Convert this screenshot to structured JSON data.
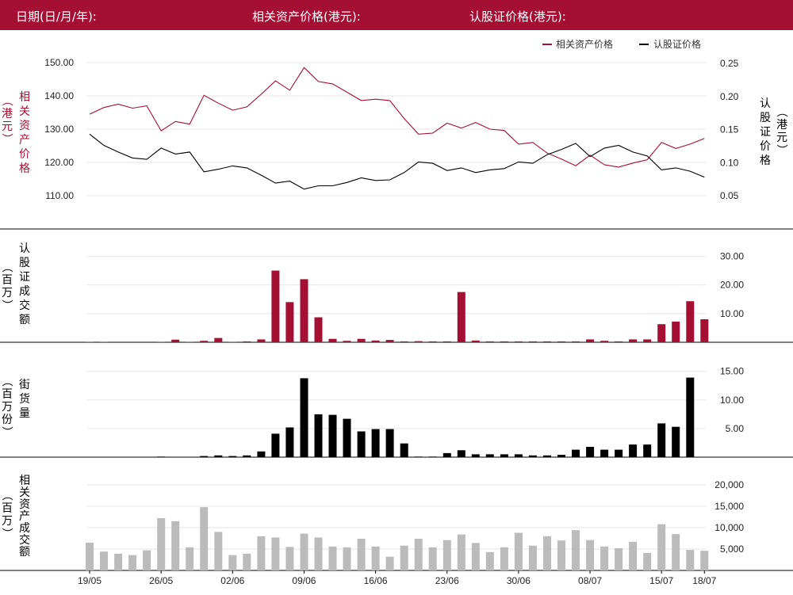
{
  "header": {
    "date_label": "日期(日/月/年):",
    "underlying_label": "相关资产价格(港元):",
    "warrant_label": "认股证价格(港元):"
  },
  "colors": {
    "header_bg": "#a50f33",
    "underlying": "#a50f33",
    "warrant": "#000000",
    "turnover_bar": "#a50f33",
    "outstanding_bar": "#000000",
    "underlying_turnover_bar": "#bbbbbb"
  },
  "chart_data": [
    {
      "type": "line",
      "title": "",
      "legend": [
        "相关资产价格",
        "认股证价格"
      ],
      "legend_position": "top-right",
      "ylabel_left": "相关资产价格（港元）",
      "ylabel_right": "认股证价格（港元）",
      "ylim_left": [
        104,
        154
      ],
      "ylim_right": [
        0.025,
        0.27
      ],
      "yticks_left": [
        "110.00",
        "120.00",
        "130.00",
        "140.00",
        "150.00"
      ],
      "yticks_right": [
        "0.05",
        "0.10",
        "0.15",
        "0.20",
        "0.25"
      ],
      "x_tick_labels": [
        "19/05",
        "26/05",
        "02/06",
        "09/06",
        "16/06",
        "23/06",
        "30/06",
        "08/07",
        "15/07",
        "18/07"
      ],
      "series": [
        {
          "name": "相关资产价格",
          "axis": "left",
          "values": [
            134.5,
            136.5,
            137.5,
            136.3,
            137,
            129.5,
            132.3,
            131.5,
            140.2,
            137.8,
            135.7,
            136.7,
            140.5,
            144.5,
            141.7,
            148.5,
            144.3,
            143.6,
            141.1,
            138.6,
            139,
            138.6,
            133.2,
            128.5,
            128.8,
            131.8,
            130.3,
            132,
            130,
            129.6,
            125.5,
            126,
            122.8,
            121,
            119,
            122.2,
            119.3,
            118.6,
            119.8,
            120.8,
            126,
            124.2,
            125.5,
            127.2
          ]
        },
        {
          "name": "认股证价格",
          "axis": "right",
          "values": [
            0.143,
            0.126,
            0.116,
            0.107,
            0.105,
            0.122,
            0.113,
            0.116,
            0.086,
            0.09,
            0.095,
            0.092,
            0.081,
            0.069,
            0.072,
            0.06,
            0.065,
            0.065,
            0.07,
            0.077,
            0.073,
            0.074,
            0.085,
            0.101,
            0.099,
            0.088,
            0.092,
            0.085,
            0.089,
            0.091,
            0.101,
            0.099,
            0.112,
            0.12,
            0.129,
            0.109,
            0.122,
            0.126,
            0.116,
            0.11,
            0.089,
            0.092,
            0.087,
            0.078
          ]
        }
      ]
    },
    {
      "type": "bar",
      "ylabel": "认股证成交额（百万）",
      "ylim": [
        0,
        30
      ],
      "yticks": [
        "10.00",
        "20.00",
        "30.00"
      ],
      "values": [
        0.1,
        0.1,
        0,
        0,
        0,
        0.1,
        0.9,
        0.1,
        0.5,
        1.5,
        0.1,
        0.3,
        1,
        25,
        14,
        22,
        8.7,
        1.2,
        0.5,
        1.2,
        0.6,
        0.8,
        0.3,
        0.4,
        0.3,
        0.3,
        17.5,
        0.6,
        0.3,
        0.3,
        0.3,
        0.3,
        0.3,
        0.3,
        0.3,
        1,
        0.5,
        0.3,
        1,
        1,
        6.3,
        7.2,
        14.3,
        8
      ]
    },
    {
      "type": "bar",
      "ylabel": "街货量（百万份）",
      "ylim": [
        0,
        15.8
      ],
      "yticks": [
        "5.00",
        "10.00",
        "15.00"
      ],
      "values": [
        0,
        0,
        0,
        0,
        0,
        0.1,
        0,
        0,
        0.2,
        0.3,
        0.2,
        0.3,
        1,
        4.1,
        5.2,
        13.8,
        7.5,
        7.4,
        6.7,
        4.5,
        4.9,
        4.9,
        2.4,
        0.1,
        0.1,
        0.7,
        1.2,
        0.5,
        0.5,
        0.5,
        0.5,
        0.3,
        0.3,
        0.4,
        1.3,
        1.8,
        1.3,
        1.3,
        2.2,
        2.2,
        5.9,
        5.3,
        13.9,
        0
      ]
    },
    {
      "type": "bar",
      "ylabel": "相关资产成交额（百万）",
      "ylim": [
        0,
        23000
      ],
      "yticks": [
        "5,000",
        "10,000",
        "15,000",
        "20,000"
      ],
      "values": [
        6500,
        4400,
        3900,
        3600,
        4700,
        12200,
        11500,
        5400,
        14800,
        9000,
        3600,
        3900,
        8000,
        7700,
        5500,
        8600,
        7700,
        5600,
        5400,
        7400,
        5600,
        3200,
        5800,
        7400,
        5400,
        7100,
        8400,
        6400,
        4300,
        5400,
        8800,
        5800,
        8000,
        7000,
        9400,
        7100,
        5600,
        5200,
        6700,
        4100,
        10800,
        8500,
        4800,
        4600
      ]
    }
  ]
}
